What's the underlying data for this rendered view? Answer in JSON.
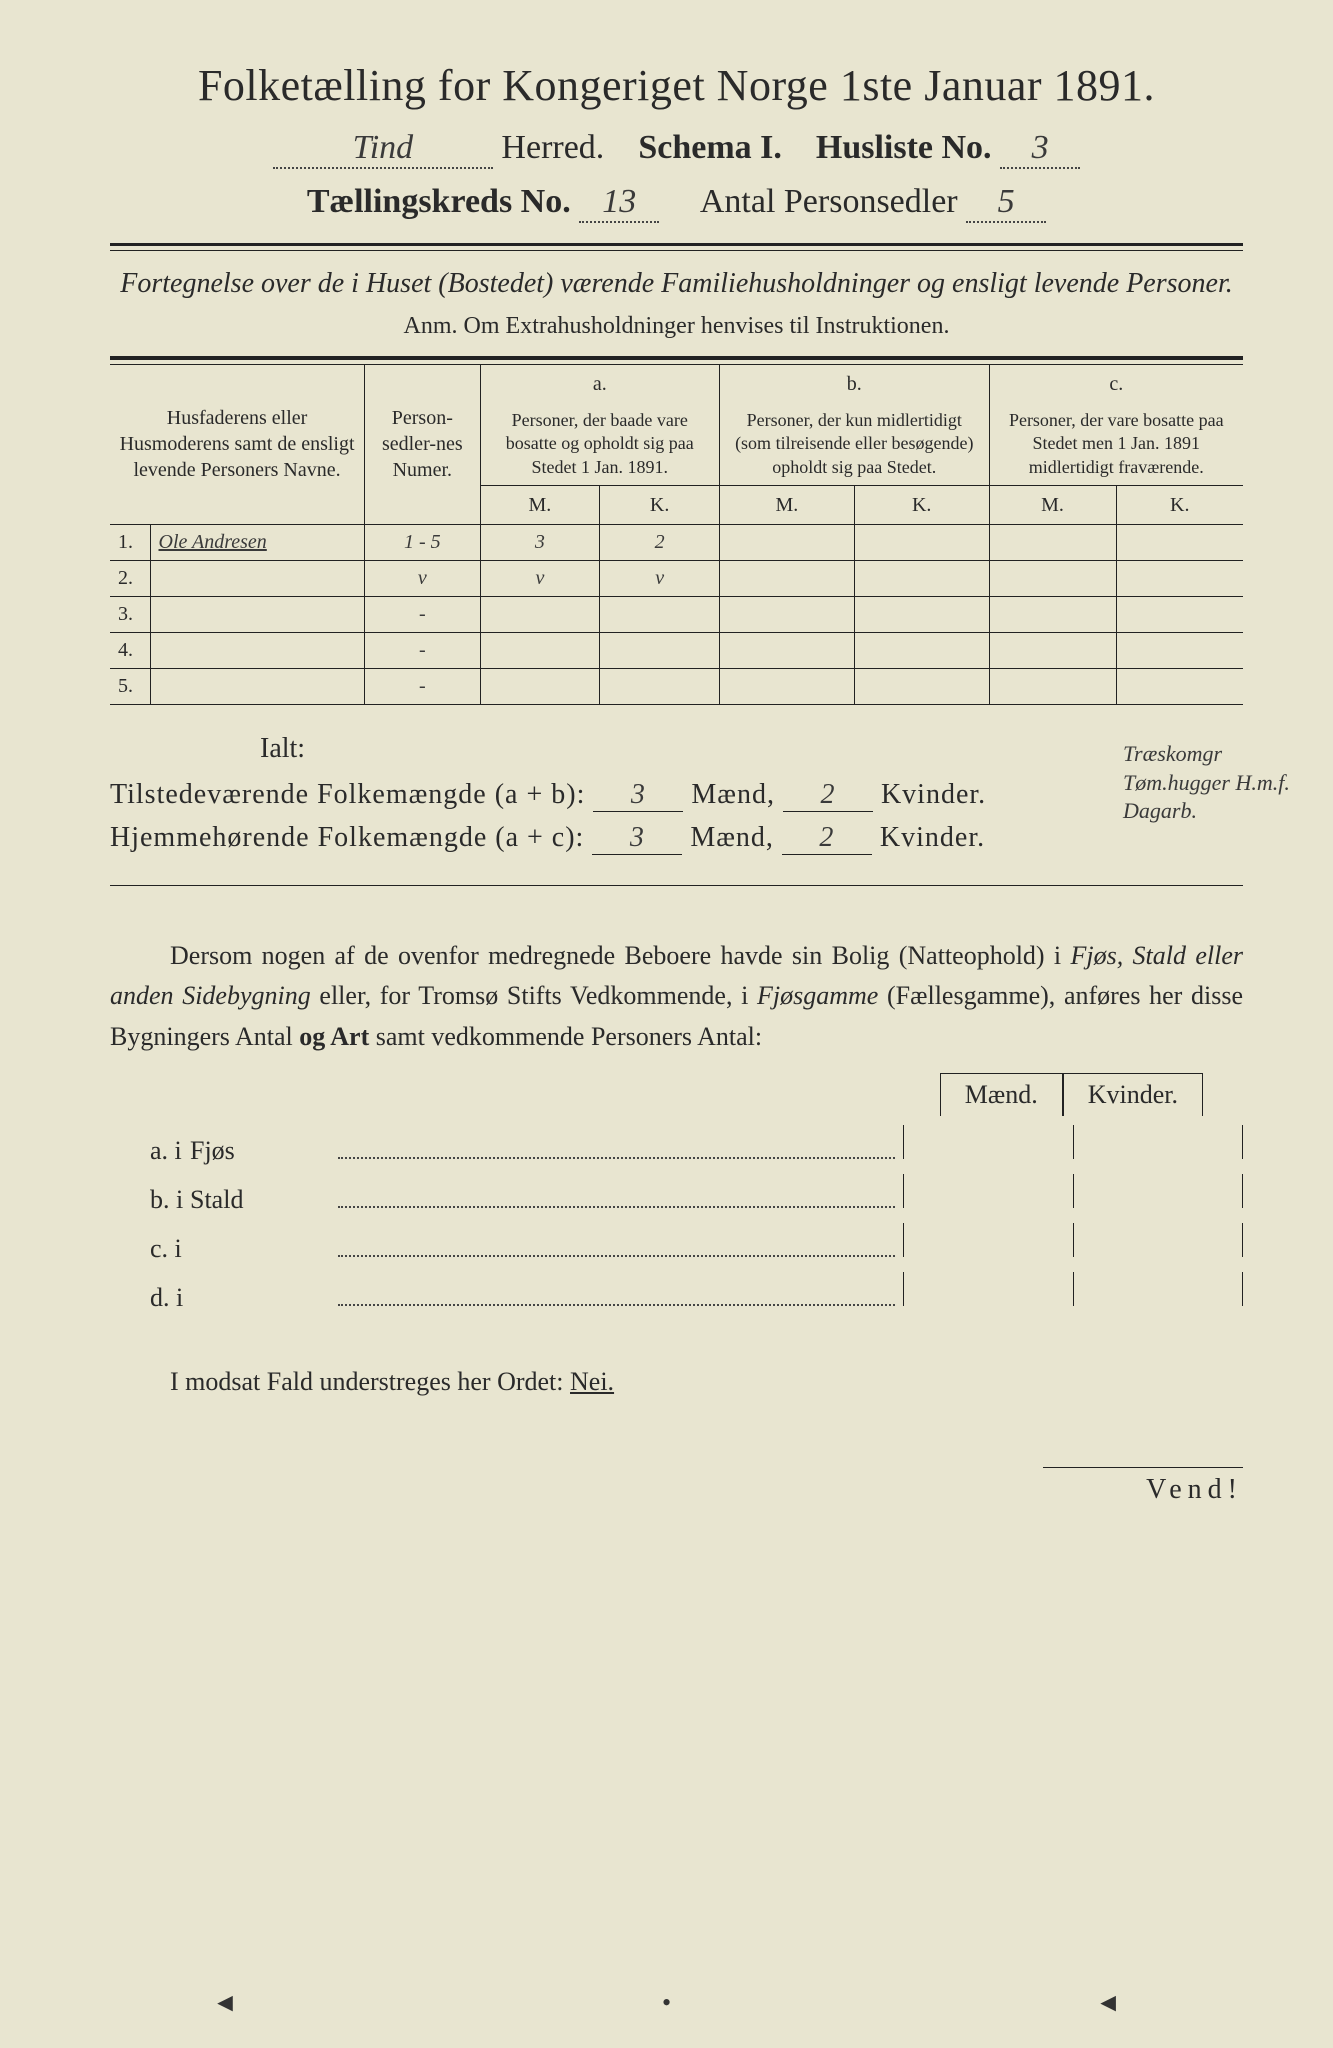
{
  "header": {
    "title": "Folketælling for Kongeriget Norge 1ste Januar 1891.",
    "herred_value": "Tind",
    "herred_label": "Herred.",
    "schema_label": "Schema I.",
    "husliste_label": "Husliste No.",
    "husliste_value": "3",
    "kreds_label": "Tællingskreds No.",
    "kreds_value": "13",
    "personsedler_label": "Antal Personsedler",
    "personsedler_value": "5"
  },
  "subheading": {
    "fortegnelse": "Fortegnelse over de i Huset (Bostedet) værende Familiehusholdninger og ensligt levende Personer.",
    "anm": "Anm. Om Extrahusholdninger henvises til Instruktionen."
  },
  "table": {
    "col_names": "Husfaderens eller Husmoderens samt de ensligt levende Personers Navne.",
    "col_numer": "Person-sedler-nes Numer.",
    "col_a_label": "a.",
    "col_a_text": "Personer, der baade vare bosatte og opholdt sig paa Stedet 1 Jan. 1891.",
    "col_b_label": "b.",
    "col_b_text": "Personer, der kun midlertidigt (som tilreisende eller besøgende) opholdt sig paa Stedet.",
    "col_c_label": "c.",
    "col_c_text": "Personer, der vare bosatte paa Stedet men 1 Jan. 1891 midlertidigt fraværende.",
    "m": "M.",
    "k": "K.",
    "rows": [
      {
        "num": "1.",
        "name": "Ole Andresen",
        "numer": "1 - 5",
        "a_m": "3",
        "a_k": "2",
        "b_m": "",
        "b_k": "",
        "c_m": "",
        "c_k": ""
      },
      {
        "num": "2.",
        "name": "",
        "numer": "v",
        "a_m": "v",
        "a_k": "v",
        "b_m": "",
        "b_k": "",
        "c_m": "",
        "c_k": ""
      },
      {
        "num": "3.",
        "name": "",
        "numer": "-",
        "a_m": "",
        "a_k": "",
        "b_m": "",
        "b_k": "",
        "c_m": "",
        "c_k": ""
      },
      {
        "num": "4.",
        "name": "",
        "numer": "-",
        "a_m": "",
        "a_k": "",
        "b_m": "",
        "b_k": "",
        "c_m": "",
        "c_k": ""
      },
      {
        "num": "5.",
        "name": "",
        "numer": "-",
        "a_m": "",
        "a_k": "",
        "b_m": "",
        "b_k": "",
        "c_m": "",
        "c_k": ""
      }
    ],
    "margin_note": "Træskomgr Tøm.hugger H.m.f. Dagarb."
  },
  "totals": {
    "ialt": "Ialt:",
    "line1_label": "Tilstedeværende Folkemængde (a + b):",
    "line2_label": "Hjemmehørende Folkemængde (a + c):",
    "maend": "Mænd,",
    "kvinder": "Kvinder.",
    "l1_m": "3",
    "l1_k": "2",
    "l2_m": "3",
    "l2_k": "2"
  },
  "paragraph": "Dersom nogen af de ovenfor medregnede Beboere havde sin Bolig (Natteophold) i Fjøs, Stald eller anden Sidebygning eller, for Tromsø Stifts Vedkommende, i Fjøsgamme (Fællesgamme), anføres her disse Bygningers Antal og Art samt vedkommende Personers Antal:",
  "side": {
    "maend": "Mænd.",
    "kvinder": "Kvinder.",
    "rows": [
      {
        "label": "a.  i",
        "type": "Fjøs"
      },
      {
        "label": "b.  i",
        "type": "Stald"
      },
      {
        "label": "c.  i",
        "type": ""
      },
      {
        "label": "d.  i",
        "type": ""
      }
    ]
  },
  "nei": {
    "text": "I modsat Fald understreges her Ordet:",
    "word": "Nei."
  },
  "vend": "Vend!",
  "colors": {
    "paper": "#e8e5d0",
    "ink": "#2a2a2a",
    "rule": "#222222"
  }
}
